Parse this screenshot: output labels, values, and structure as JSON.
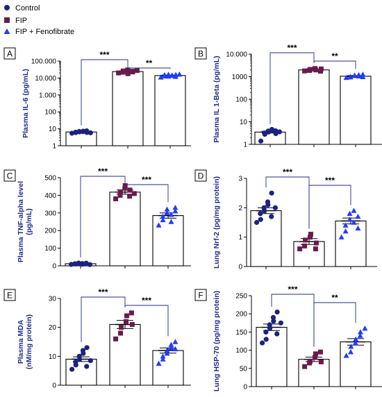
{
  "legend": [
    {
      "label": "Control",
      "color": "#1a237e",
      "marker": "circle"
    },
    {
      "label": "FIP",
      "color": "#6a1b4d",
      "marker": "square"
    },
    {
      "label": "FIP + Fenofibrate",
      "color": "#1e3cff",
      "marker": "triangle"
    }
  ],
  "chart_data": [
    {
      "id": "A",
      "type": "bar",
      "ylabel": "Plasma IL-6 (pg/mL)",
      "yscale": "log",
      "ylim": [
        1,
        100000
      ],
      "ytick_values": [
        1,
        10,
        100,
        1000,
        10000,
        100000
      ],
      "ytick_labels": [
        "1",
        "10",
        "100",
        "1.000",
        "10.000",
        "100.000"
      ],
      "series": [
        {
          "name": "Control",
          "mean": 6.5,
          "sem": 0.4,
          "points": [
            5.5,
            6.0,
            6.3,
            6.6,
            7.0,
            7.3,
            6.8,
            6.1,
            7.6,
            5.8
          ]
        },
        {
          "name": "FIP",
          "mean": 24000,
          "sem": 2200,
          "points": [
            20000,
            22000,
            26000,
            30000,
            18000,
            25000,
            23000,
            28000
          ]
        },
        {
          "name": "FIP + Fenofibrate",
          "mean": 14000,
          "sem": 900,
          "points": [
            11000,
            13000,
            15000,
            16000,
            12500,
            14500,
            13500,
            15500,
            12000,
            16500
          ]
        }
      ],
      "significance": [
        {
          "from": 0,
          "to": 1,
          "label": "***"
        },
        {
          "from": 1,
          "to": 2,
          "label": "**"
        }
      ]
    },
    {
      "id": "B",
      "type": "bar",
      "ylabel": "Plasma IL 1-Beta (pg/mL)",
      "yscale": "log",
      "ylim": [
        1,
        10000
      ],
      "ytick_values": [
        1,
        10,
        100,
        1000,
        10000
      ],
      "ytick_labels": [
        "1",
        "10",
        "100",
        "1000",
        "10.000"
      ],
      "series": [
        {
          "name": "Control",
          "mean": 3.5,
          "sem": 0.3,
          "points": [
            1.4,
            2.8,
            3.2,
            3.5,
            3.9,
            4.2,
            4.6,
            3.0,
            4.0,
            3.6
          ]
        },
        {
          "name": "FIP",
          "mean": 2000,
          "sem": 120,
          "points": [
            1800,
            1900,
            2100,
            2300,
            2000,
            1750,
            2200
          ]
        },
        {
          "name": "FIP + Fenofibrate",
          "mean": 1050,
          "sem": 70,
          "points": [
            900,
            950,
            1000,
            1100,
            1150,
            1200,
            1050,
            980,
            1250
          ]
        }
      ],
      "significance": [
        {
          "from": 0,
          "to": 1,
          "label": "***"
        },
        {
          "from": 1,
          "to": 2,
          "label": "**"
        }
      ]
    },
    {
      "id": "C",
      "type": "bar",
      "ylabel": "Plasma TNF-alpha level\n(pg/mL)",
      "yscale": "linear",
      "ylim": [
        0,
        500
      ],
      "ytick_values": [
        0,
        100,
        200,
        300,
        400,
        500
      ],
      "ytick_labels": [
        "0",
        "100",
        "200",
        "300",
        "400",
        "500"
      ],
      "series": [
        {
          "name": "Control",
          "mean": 12,
          "sem": 2,
          "points": [
            8,
            10,
            12,
            14,
            16,
            9,
            13,
            15,
            11,
            7
          ]
        },
        {
          "name": "FIP",
          "mean": 418,
          "sem": 12,
          "points": [
            380,
            400,
            420,
            440,
            455,
            395,
            430,
            410
          ]
        },
        {
          "name": "FIP + Fenofibrate",
          "mean": 285,
          "sem": 15,
          "points": [
            230,
            260,
            280,
            300,
            320,
            290,
            250,
            310,
            330
          ]
        }
      ],
      "significance": [
        {
          "from": 0,
          "to": 1,
          "label": "***"
        },
        {
          "from": 1,
          "to": 2,
          "label": "***"
        }
      ]
    },
    {
      "id": "D",
      "type": "bar",
      "ylabel": "Lung Nrf-2 (pg/mg protein)",
      "yscale": "linear",
      "ylim": [
        0,
        3
      ],
      "ytick_values": [
        0,
        1,
        2,
        3
      ],
      "ytick_labels": [
        "0",
        "1",
        "2",
        "3"
      ],
      "series": [
        {
          "name": "Control",
          "mean": 1.9,
          "sem": 0.1,
          "points": [
            1.5,
            1.6,
            1.8,
            1.9,
            2.0,
            2.1,
            2.2,
            2.5,
            1.7,
            2.0
          ]
        },
        {
          "name": "FIP",
          "mean": 0.85,
          "sem": 0.1,
          "points": [
            0.6,
            0.7,
            0.9,
            1.0,
            1.1,
            0.6,
            0.8
          ]
        },
        {
          "name": "FIP + Fenofibrate",
          "mean": 1.55,
          "sem": 0.1,
          "points": [
            1.0,
            1.2,
            1.4,
            1.6,
            1.8,
            1.9,
            1.5,
            1.7,
            1.3
          ]
        }
      ],
      "significance": [
        {
          "from": 0,
          "to": 1,
          "label": "***"
        },
        {
          "from": 1,
          "to": 2,
          "label": "***"
        }
      ]
    },
    {
      "id": "E",
      "type": "bar",
      "ylabel": "Plasma MDA\n(nM/mg protein)",
      "yscale": "linear",
      "ylim": [
        0,
        30
      ],
      "ytick_values": [
        0,
        10,
        20,
        30
      ],
      "ytick_labels": [
        "0",
        "10",
        "20",
        "30"
      ],
      "series": [
        {
          "name": "Control",
          "mean": 9,
          "sem": 0.8,
          "points": [
            5.5,
            7,
            8,
            9,
            10,
            11,
            12,
            13,
            6.5,
            8.5
          ]
        },
        {
          "name": "FIP",
          "mean": 21,
          "sem": 1.4,
          "points": [
            16,
            18,
            20,
            22,
            24,
            25,
            21
          ]
        },
        {
          "name": "FIP + Fenofibrate",
          "mean": 12,
          "sem": 0.9,
          "points": [
            7.5,
            9,
            10,
            11,
            12,
            13,
            14,
            15,
            12.5
          ]
        }
      ],
      "significance": [
        {
          "from": 0,
          "to": 1,
          "label": "***"
        },
        {
          "from": 1,
          "to": 2,
          "label": "***"
        }
      ]
    },
    {
      "id": "F",
      "type": "bar",
      "ylabel": "Lung HSP-70 (pg/mg protein)",
      "yscale": "linear",
      "ylim": [
        0,
        250
      ],
      "ytick_values": [
        0,
        50,
        100,
        150,
        200,
        250
      ],
      "ytick_labels": [
        "0",
        "50",
        "100",
        "150",
        "200",
        "250"
      ],
      "series": [
        {
          "name": "Control",
          "mean": 163,
          "sem": 9,
          "points": [
            120,
            130,
            150,
            160,
            170,
            180,
            190,
            205,
            145,
            175
          ]
        },
        {
          "name": "FIP",
          "mean": 75,
          "sem": 6,
          "points": [
            55,
            65,
            70,
            80,
            90,
            95,
            68
          ]
        },
        {
          "name": "FIP + Fenofibrate",
          "mean": 123,
          "sem": 9,
          "points": [
            85,
            95,
            110,
            120,
            130,
            140,
            150,
            160
          ]
        }
      ],
      "significance": [
        {
          "from": 0,
          "to": 1,
          "label": "***"
        },
        {
          "from": 1,
          "to": 2,
          "label": "**"
        }
      ]
    }
  ]
}
